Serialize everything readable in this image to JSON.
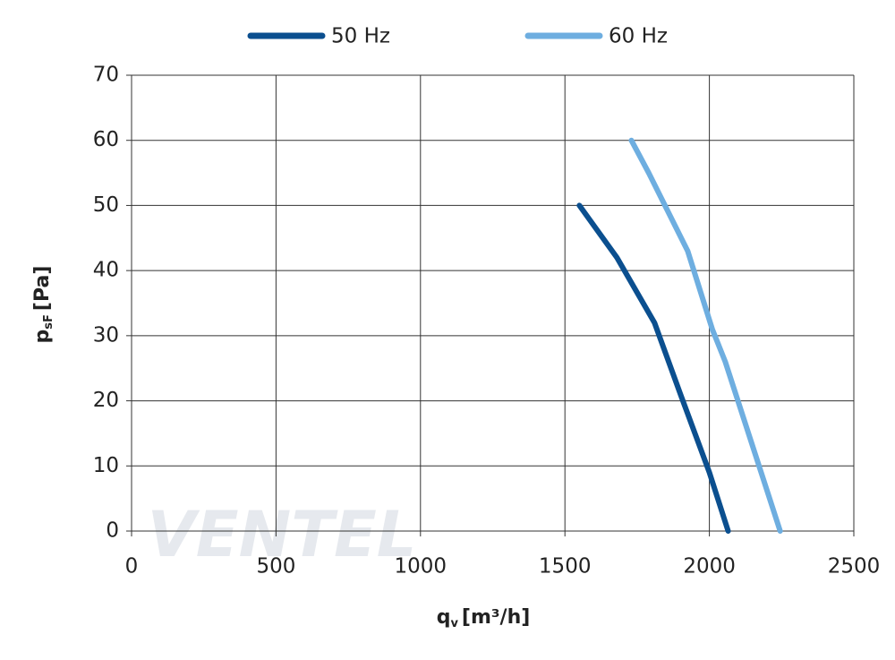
{
  "chart_data": {
    "type": "line",
    "watermark": "VENTEL",
    "x_label": {
      "main": "q",
      "sub": "v",
      "unit": "[m³/h]"
    },
    "y_label": {
      "main": "p",
      "sub": "sF",
      "unit": "[Pa]"
    },
    "series": [
      {
        "name": "50 Hz",
        "color": "#0b4f8f",
        "x": [
          1550,
          1680,
          1810,
          1900,
          2000,
          2065
        ],
        "values": [
          50,
          42,
          32,
          21,
          9,
          0
        ]
      },
      {
        "name": "60 Hz",
        "color": "#6eaee0",
        "x": [
          1730,
          1790,
          1925,
          2010,
          2055,
          2245
        ],
        "values": [
          60,
          55,
          43,
          31,
          26,
          0
        ]
      }
    ],
    "xlim": [
      0,
      2500
    ],
    "xticks": [
      0,
      500,
      1000,
      1500,
      2000,
      2500
    ],
    "ylim": [
      0,
      70
    ],
    "yticks": [
      0,
      10,
      20,
      30,
      40,
      50,
      60,
      70
    ],
    "grid": true,
    "legend": "top"
  }
}
